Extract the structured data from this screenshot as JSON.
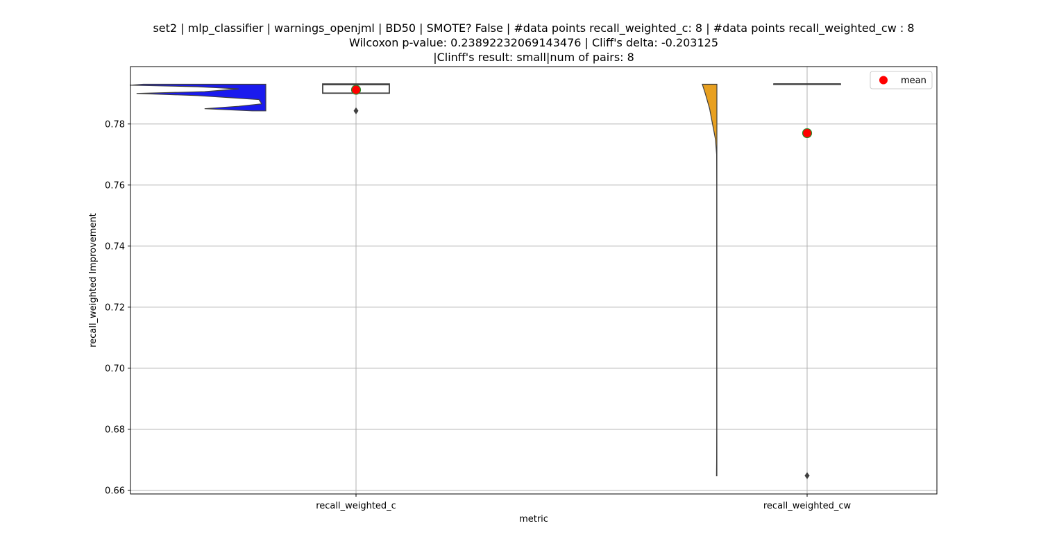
{
  "chart_data": {
    "type": "violin+box",
    "title_lines": [
      "set2 | mlp_classifier | warnings_openjml | BD50 | SMOTE? False | #data points recall_weighted_c: 8 | #data points recall_weighted_cw : 8",
      "Wilcoxon p-value: 0.23892232069143476 | Cliff's delta: -0.203125",
      "|Clinff's result: small|num of pairs: 8"
    ],
    "xlabel": "metric",
    "ylabel": "recall_weighted Improvement",
    "ylim": [
      0.6588,
      0.7988
    ],
    "yticks": [
      0.66,
      0.68,
      0.7,
      0.72,
      0.74,
      0.76,
      0.78
    ],
    "ytick_labels": [
      "0.66",
      "0.68",
      "0.70",
      "0.72",
      "0.74",
      "0.76",
      "0.78"
    ],
    "categories": [
      "recall_weighted_c",
      "recall_weighted_cw"
    ],
    "grid": true,
    "legend": {
      "placement": "top-right",
      "entries": [
        {
          "label": "mean",
          "color": "#ff0000"
        }
      ]
    },
    "series": [
      {
        "category": "recall_weighted_c",
        "violin_color": "#1a1aee",
        "violin_range": [
          0.7843,
          0.793
        ],
        "violin_profile": [
          [
            0.7843,
            0.1
          ],
          [
            0.785,
            0.45
          ],
          [
            0.7858,
            0.2
          ],
          [
            0.7866,
            0.03
          ],
          [
            0.788,
            0.05
          ],
          [
            0.7893,
            0.5
          ],
          [
            0.79,
            0.95
          ],
          [
            0.7906,
            0.45
          ],
          [
            0.7915,
            0.2
          ],
          [
            0.7922,
            0.5
          ],
          [
            0.7927,
            1.0
          ],
          [
            0.793,
            0.9
          ]
        ],
        "box": {
          "q1": 0.7901,
          "median": 0.7929,
          "q3": 0.7931,
          "whisker_low": 0.7901,
          "whisker_high": 0.7931
        },
        "outliers": [
          0.7843
        ],
        "mean": 0.7912
      },
      {
        "category": "recall_weighted_cw",
        "violin_color": "#e8a020",
        "violin_range": [
          0.6648,
          0.793
        ],
        "violin_profile": [
          [
            0.6648,
            0.03
          ],
          [
            0.67,
            0.02
          ],
          [
            0.68,
            0.015
          ],
          [
            0.7,
            0.012
          ],
          [
            0.72,
            0.012
          ],
          [
            0.74,
            0.012
          ],
          [
            0.76,
            0.013
          ],
          [
            0.77,
            0.02
          ],
          [
            0.775,
            0.1
          ],
          [
            0.78,
            0.3
          ],
          [
            0.785,
            0.5
          ],
          [
            0.79,
            0.8
          ],
          [
            0.793,
            1.0
          ]
        ],
        "box": {
          "q1": 0.7931,
          "median": 0.7931,
          "q3": 0.7931,
          "whisker_low": 0.7931,
          "whisker_high": 0.7931
        },
        "outliers": [
          0.6648
        ],
        "mean": 0.777
      }
    ]
  }
}
